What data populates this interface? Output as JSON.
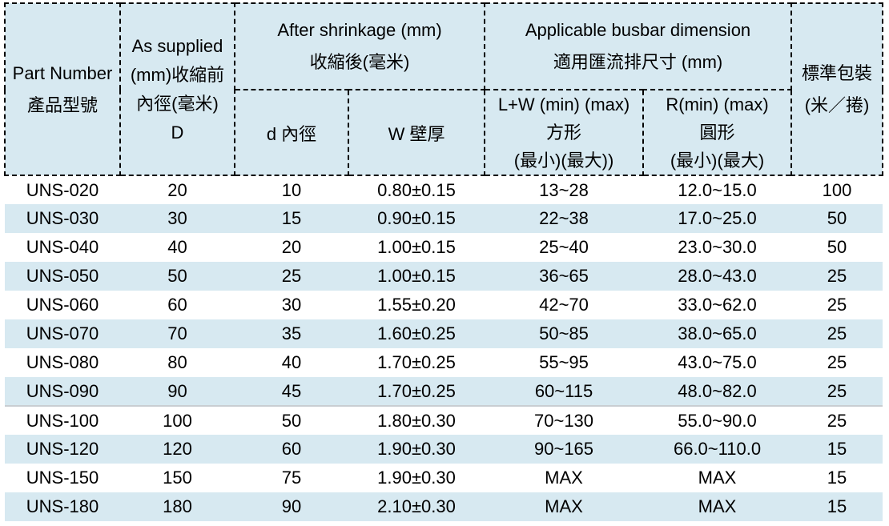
{
  "colors": {
    "header_bg": "#d7e9f1",
    "row_stripe": "#d7e9f1",
    "border": "#000000",
    "section_divider": "#c9ced2",
    "text": "#000000"
  },
  "table": {
    "header": {
      "part_number_lines": [
        "Part Number",
        "產品型號"
      ],
      "as_supplied_lines": [
        "As supplied",
        "(mm)收縮前",
        "內徑(毫米)",
        "D"
      ],
      "after_shrinkage_lines": [
        "After shrinkage (mm)",
        "收縮後(毫米)"
      ],
      "d_label": "d 內徑",
      "w_label": "W 壁厚",
      "busbar_lines": [
        "Applicable busbar dimension",
        "適用匯流排尺寸 (mm)"
      ],
      "lw_lines": [
        "L+W (min) (max)",
        "方形",
        "(最小)(最大))"
      ],
      "r_lines": [
        "R(min) (max)",
        "圓形",
        "(最小)(最大)"
      ],
      "packaging_lines": [
        "標準包裝",
        "(米／捲)"
      ]
    },
    "column_keys": [
      "part-number",
      "as-supplied-diameter",
      "shrunk-inner-diameter",
      "wall-thickness",
      "busbar-lw-range",
      "busbar-r-range",
      "packaging-length"
    ],
    "section_break_row_index": 8,
    "rows": [
      [
        "UNS-020",
        "20",
        "10",
        "0.80±0.15",
        "13~28",
        "12.0~15.0",
        "100"
      ],
      [
        "UNS-030",
        "30",
        "15",
        "0.90±0.15",
        "22~38",
        "17.0~25.0",
        "50"
      ],
      [
        "UNS-040",
        "40",
        "20",
        "1.00±0.15",
        "25~40",
        "23.0~30.0",
        "50"
      ],
      [
        "UNS-050",
        "50",
        "25",
        "1.00±0.15",
        "36~65",
        "28.0~43.0",
        "25"
      ],
      [
        "UNS-060",
        "60",
        "30",
        "1.55±0.20",
        "42~70",
        "33.0~62.0",
        "25"
      ],
      [
        "UNS-070",
        "70",
        "35",
        "1.60±0.25",
        "50~85",
        "38.0~65.0",
        "25"
      ],
      [
        "UNS-080",
        "80",
        "40",
        "1.70±0.25",
        "55~95",
        "43.0~75.0",
        "25"
      ],
      [
        "UNS-090",
        "90",
        "45",
        "1.70±0.25",
        "60~115",
        "48.0~82.0",
        "25"
      ],
      [
        "UNS-100",
        "100",
        "50",
        "1.80±0.30",
        "70~130",
        "55.0~90.0",
        "25"
      ],
      [
        "UNS-120",
        "120",
        "60",
        "1.90±0.30",
        "90~165",
        "66.0~110.0",
        "15"
      ],
      [
        "UNS-150",
        "150",
        "75",
        "1.90±0.30",
        "MAX",
        "MAX",
        "15"
      ],
      [
        "UNS-180",
        "180",
        "90",
        "2.10±0.30",
        "MAX",
        "MAX",
        "15"
      ]
    ]
  }
}
